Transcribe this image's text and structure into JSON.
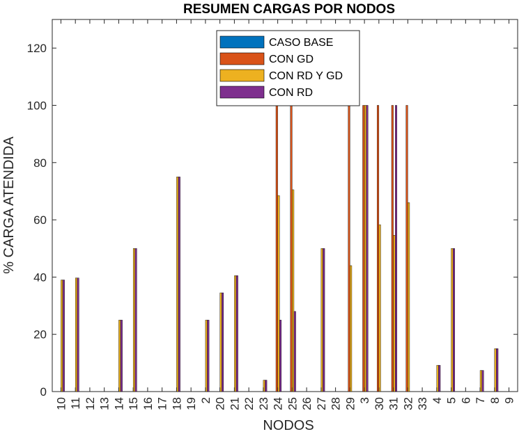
{
  "chart_data": {
    "type": "bar",
    "title": "RESUMEN CARGAS POR NODOS",
    "xlabel": "NODOS",
    "ylabel": "% CARGA ATENDIDA",
    "ylim": [
      0,
      130
    ],
    "yticks": [
      0,
      20,
      40,
      60,
      80,
      100,
      120
    ],
    "grid": false,
    "legend_position": "top-center",
    "categories": [
      "10",
      "11",
      "12",
      "13",
      "14",
      "15",
      "16",
      "17",
      "18",
      "19",
      "2",
      "20",
      "21",
      "22",
      "23",
      "24",
      "25",
      "26",
      "27",
      "28",
      "29",
      "3",
      "30",
      "31",
      "32",
      "33",
      "4",
      "5",
      "6",
      "7",
      "8",
      "9"
    ],
    "series": [
      {
        "name": "CASO BASE",
        "color": "#0072BD",
        "values": [
          0,
          0,
          0,
          0,
          0,
          0,
          0,
          0,
          0,
          0,
          0,
          0,
          0,
          0,
          0,
          0,
          0,
          0,
          0,
          0,
          0,
          0,
          0,
          0,
          0,
          0,
          0,
          0,
          0,
          0,
          0,
          0
        ]
      },
      {
        "name": "CON GD",
        "color": "#D95319",
        "values": [
          0,
          0,
          0,
          0,
          0,
          0,
          0,
          0,
          0,
          0,
          0,
          0,
          0,
          0,
          0,
          100,
          100,
          0,
          0,
          0,
          100,
          100,
          100,
          100,
          100,
          0,
          0,
          0,
          0,
          0,
          0,
          0
        ]
      },
      {
        "name": "CON RD Y GD",
        "color": "#EDB120",
        "values": [
          39,
          39.7,
          0,
          0,
          25,
          50,
          0,
          0,
          75,
          0,
          25,
          34.5,
          40.5,
          0,
          4,
          68.5,
          70.5,
          0,
          50,
          0,
          44,
          100,
          58.3,
          54.6,
          66,
          0,
          9.2,
          50,
          0,
          7.4,
          15,
          0
        ]
      },
      {
        "name": "CON RD",
        "color": "#7E2F8E",
        "values": [
          39,
          39.7,
          0,
          0,
          25,
          50,
          0,
          0,
          75,
          0,
          25,
          34.5,
          40.5,
          0,
          4,
          25,
          28,
          0,
          50,
          0,
          0,
          100,
          0,
          100,
          0,
          0,
          9.2,
          50,
          0,
          7.4,
          15,
          0
        ]
      }
    ]
  }
}
